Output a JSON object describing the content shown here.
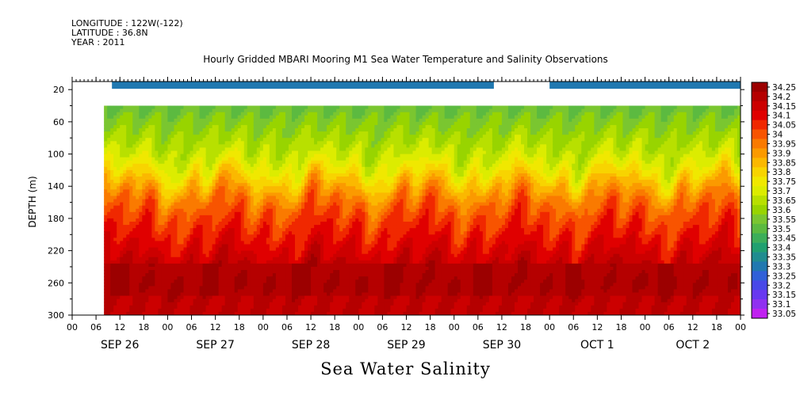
{
  "header": {
    "longitude": "LONGITUDE : 122W(-122)",
    "latitude": "LATITUDE : 36.8N",
    "year": "YEAR : 2011"
  },
  "chart_data": {
    "type": "heatmap",
    "title": "Hourly Gridded MBARI Mooring M1 Sea Water Temperature and Salinity Observations",
    "caption": "Sea Water Salinity",
    "ylabel": "DEPTH (m)",
    "xlabel": "",
    "ylim": [
      300,
      10
    ],
    "y_ticks": [
      20,
      60,
      100,
      140,
      180,
      220,
      260,
      300
    ],
    "x_hour_ticks": [
      "00",
      "06",
      "12",
      "18",
      "00",
      "06",
      "12",
      "18",
      "00",
      "06",
      "12",
      "18",
      "00",
      "06",
      "12",
      "18",
      "00",
      "06",
      "12",
      "18",
      "00",
      "06",
      "12",
      "18",
      "00",
      "06",
      "12",
      "18",
      "00"
    ],
    "x_day_labels": [
      "SEP 26",
      "SEP 27",
      "SEP 28",
      "SEP 29",
      "SEP 30",
      "OCT  1",
      "OCT  2"
    ],
    "x_range": [
      "2011-09-26T00:00",
      "2011-10-03T00:00"
    ],
    "data_start": "2011-09-26T08:00",
    "surface_band": {
      "depth_range": [
        10,
        20
      ],
      "value": 33.3,
      "gap": [
        "2011-09-30T10:00",
        "2011-10-01T00:00"
      ],
      "start": "2011-09-26T10:00"
    },
    "profile": {
      "depth": [
        40,
        60,
        80,
        100,
        120,
        140,
        160,
        180,
        200,
        220,
        240,
        260,
        280,
        300
      ],
      "salinity": [
        33.55,
        33.6,
        33.65,
        33.7,
        33.78,
        33.9,
        34.0,
        34.05,
        34.1,
        34.15,
        34.2,
        34.25,
        34.2,
        34.2
      ]
    },
    "colorbar": {
      "levels": [
        "34.25",
        "34.2",
        "34.15",
        "34.1",
        "34.05",
        "34",
        "33.95",
        "33.9",
        "33.85",
        "33.8",
        "33.75",
        "33.7",
        "33.65",
        "33.6",
        "33.55",
        "33.5",
        "33.45",
        "33.4",
        "33.35",
        "33.3",
        "33.25",
        "33.2",
        "33.15",
        "33.1",
        "33.05"
      ],
      "colors": [
        "#9c0000",
        "#b50000",
        "#cc0000",
        "#e00000",
        "#f02800",
        "#f85400",
        "#fa7a00",
        "#fb9a00",
        "#fbb800",
        "#f8d400",
        "#f0e800",
        "#dcec00",
        "#b8e000",
        "#98d400",
        "#7ac630",
        "#5cba40",
        "#3cae5a",
        "#20a070",
        "#208c90",
        "#2078b0",
        "#3060d8",
        "#4848e8",
        "#6838f0",
        "#9030f0",
        "#c020f0"
      ]
    }
  }
}
